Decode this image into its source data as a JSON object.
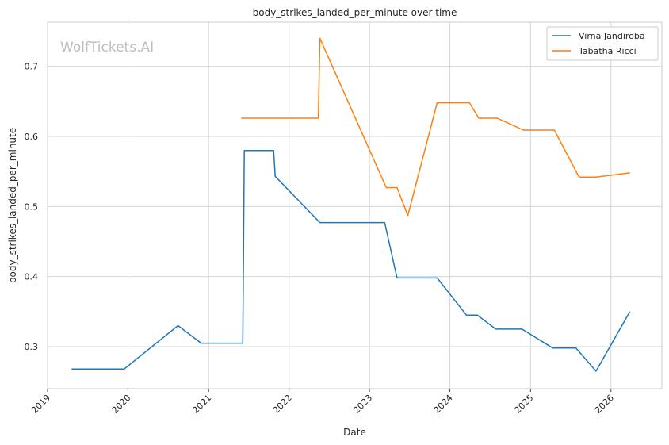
{
  "chart_data": {
    "type": "line",
    "title": "body_strikes_landed_per_minute over time",
    "xlabel": "Date",
    "ylabel": "body_strikes_landed_per_minute",
    "watermark": "WolfTickets.AI",
    "x_ticks": [
      "2019",
      "2020",
      "2021",
      "2022",
      "2023",
      "2024",
      "2025",
      "2026"
    ],
    "y_ticks": [
      "0.3",
      "0.4",
      "0.5",
      "0.6",
      "0.7"
    ],
    "xlim": [
      "2019-01-01",
      "2026-08-20"
    ],
    "ylim": [
      0.24,
      0.763
    ],
    "grid": true,
    "legend_position": "top-right",
    "series": [
      {
        "name": "Virna Jandiroba",
        "color": "#1f77b4",
        "points": [
          [
            "2019-04-20",
            0.268
          ],
          [
            "2019-12-14",
            0.268
          ],
          [
            "2020-08-15",
            0.33
          ],
          [
            "2020-11-28",
            0.305
          ],
          [
            "2021-06-05",
            0.305
          ],
          [
            "2021-06-12",
            0.58
          ],
          [
            "2021-10-23",
            0.58
          ],
          [
            "2021-10-30",
            0.543
          ],
          [
            "2022-05-21",
            0.477
          ],
          [
            "2023-03-11",
            0.477
          ],
          [
            "2023-05-06",
            0.398
          ],
          [
            "2023-11-04",
            0.398
          ],
          [
            "2024-03-16",
            0.345
          ],
          [
            "2024-05-04",
            0.345
          ],
          [
            "2024-07-27",
            0.325
          ],
          [
            "2024-11-23",
            0.325
          ],
          [
            "2025-04-12",
            0.298
          ],
          [
            "2025-07-26",
            0.298
          ],
          [
            "2025-10-25",
            0.265
          ],
          [
            "2026-03-28",
            0.35
          ]
        ]
      },
      {
        "name": "Tabatha Ricci",
        "color": "#ff7f0e",
        "points": [
          [
            "2021-05-29",
            0.626
          ],
          [
            "2022-05-14",
            0.626
          ],
          [
            "2022-05-21",
            0.74
          ],
          [
            "2023-03-18",
            0.527
          ],
          [
            "2023-05-06",
            0.527
          ],
          [
            "2023-06-24",
            0.487
          ],
          [
            "2023-11-04",
            0.648
          ],
          [
            "2024-03-30",
            0.648
          ],
          [
            "2024-05-11",
            0.626
          ],
          [
            "2024-08-03",
            0.626
          ],
          [
            "2024-11-30",
            0.609
          ],
          [
            "2025-04-19",
            0.609
          ],
          [
            "2025-08-09",
            0.542
          ],
          [
            "2025-10-25",
            0.542
          ],
          [
            "2026-03-28",
            0.548
          ]
        ]
      }
    ]
  }
}
